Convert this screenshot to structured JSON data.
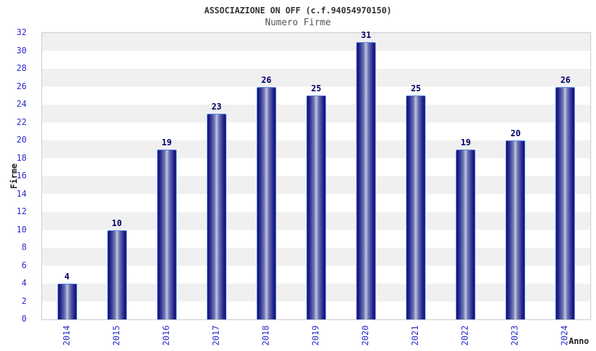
{
  "chart_data": {
    "type": "bar",
    "title": "ASSOCIAZIONE ON OFF (c.f.94054970150)",
    "subtitle": "Numero Firme",
    "xlabel": "Anno",
    "ylabel": "Firme",
    "categories": [
      "2014",
      "2015",
      "2016",
      "2017",
      "2018",
      "2019",
      "2020",
      "2021",
      "2022",
      "2023",
      "2024"
    ],
    "values": [
      4,
      10,
      19,
      23,
      26,
      25,
      31,
      25,
      19,
      20,
      26
    ],
    "ylim": [
      0,
      32
    ],
    "yticks": [
      0,
      2,
      4,
      6,
      8,
      10,
      12,
      14,
      16,
      18,
      20,
      22,
      24,
      26,
      28,
      30,
      32
    ],
    "grid": "horizontal-alternating-bands",
    "legend": "none",
    "colors": {
      "bar_dark": "#131370",
      "bar_light_center": "#c0c6e2",
      "bar_border": "#5585ea",
      "tick_label": "#2a2acc",
      "value_label": "#000066",
      "band_gray": "#f0f0f0",
      "band_white": "#ffffff",
      "plot_border": "#cccccc",
      "title_color": "#333333",
      "subtitle_color": "#555555",
      "axis_title_color": "#222222"
    }
  }
}
